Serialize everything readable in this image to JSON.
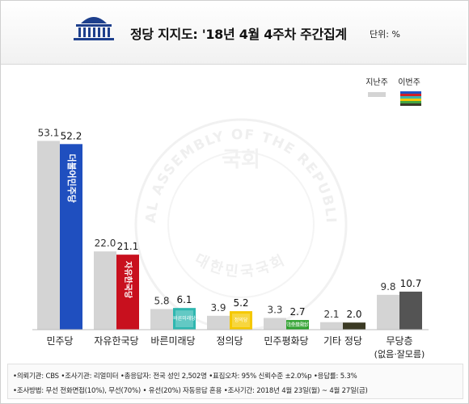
{
  "header": {
    "title": "정당 지지도: '18년 4월 4주차 주간집계",
    "unit": "단위: %"
  },
  "watermark": {
    "ring_text": "THE NATIONAL ASSEMBLY OF THE REPUBLIC OF KOREA",
    "bottom_text": "대한민국국회",
    "center_text": "국회"
  },
  "legend": {
    "last_week": "지난주",
    "this_week": "이번주"
  },
  "chart_data": {
    "type": "bar",
    "categories": [
      "민주당",
      "자유한국당",
      "바른미래당",
      "정의당",
      "민주평화당",
      "기타 정당",
      "무당층"
    ],
    "category_sublabels": [
      "",
      "",
      "",
      "",
      "",
      "",
      "(없음·잘모름)"
    ],
    "series": [
      {
        "name": "지난주",
        "values": [
          53.1,
          22.0,
          5.8,
          3.9,
          3.3,
          2.1,
          9.8
        ]
      },
      {
        "name": "이번주",
        "values": [
          52.2,
          21.1,
          6.1,
          5.2,
          2.7,
          2.0,
          10.7
        ]
      }
    ],
    "this_week_colors": [
      "#1f4fbf",
      "#c8101e",
      "#2fb7b0",
      "#f5c800",
      "#2ca02c",
      "#3b3a24",
      "#545454"
    ],
    "last_week_color": "#d4d4d4",
    "legend_stripes": [
      "#2052c2",
      "#d11f26",
      "#3bb5ad",
      "#f6c800",
      "#43a542",
      "#3a3a2a"
    ],
    "bar_logos": [
      "더불어민주당",
      "자유한국당",
      "바른미래당",
      "정의당",
      "민주평화당",
      "",
      ""
    ],
    "ylim": [
      0,
      55
    ],
    "grid": false,
    "legend_position": "top-right"
  },
  "footer": {
    "line1": "•의뢰기관: CBS  •조사기관: 리얼미터  •총응답자: 전국 성인 2,502명  •표집오차: 95% 신뢰수준 ±2.0%p  •응답률: 5.3%",
    "line2": "•조사방법: 무선 전화면접(10%), 무선(70%) • 유선(20%) 자동응답 혼용  •조사기간: 2018년 4월 23일(월) ~ 4월 27일(금)"
  }
}
